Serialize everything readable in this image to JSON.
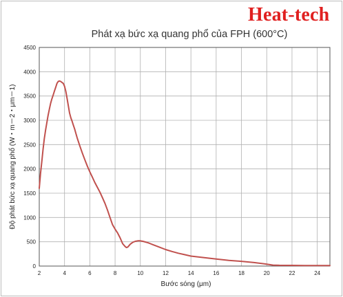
{
  "brand": {
    "logo_text": "Heat-tech",
    "color": "#e02020"
  },
  "chart_data": {
    "type": "line",
    "title": "Phát xạ bức xạ quang phổ của FPH (600°C)",
    "xlabel": "Bước sóng (μm)",
    "ylabel": "Độ phát bức xạ quang phổ (W・m－2・μm－1)",
    "xlim": [
      2,
      25
    ],
    "ylim": [
      0,
      4500
    ],
    "xticks": [
      "2",
      "4",
      "6",
      "8",
      "10",
      "12",
      "14",
      "16",
      "18",
      "20",
      "22",
      "24"
    ],
    "xtick_values": [
      2,
      4,
      6,
      8,
      10,
      12,
      14,
      16,
      18,
      20,
      22,
      24
    ],
    "yticks": [
      "0",
      "500",
      "1000",
      "1500",
      "2000",
      "2500",
      "3000",
      "3500",
      "4000",
      "4500"
    ],
    "ytick_values": [
      0,
      500,
      1000,
      1500,
      2000,
      2500,
      3000,
      3500,
      4000,
      4500
    ],
    "grid": true,
    "line_color": "#c0504d",
    "series": [
      {
        "x": [
          2.0,
          2.1,
          2.2,
          2.3,
          2.4,
          2.5,
          2.6,
          2.7,
          2.8,
          2.9,
          3.0,
          3.1,
          3.2,
          3.3,
          3.4,
          3.5,
          3.6,
          3.7,
          3.8,
          3.9,
          4.0,
          4.1,
          4.2,
          4.3,
          4.4,
          4.5,
          4.6,
          4.7,
          4.8,
          4.9,
          5.0,
          5.2,
          5.4,
          5.6,
          5.8,
          6.0,
          6.2,
          6.4,
          6.6,
          6.8,
          7.0,
          7.2,
          7.4,
          7.6,
          7.8,
          8.0,
          8.2,
          8.4,
          8.6,
          8.8,
          8.9,
          9.0,
          9.1,
          9.2,
          9.4,
          9.6,
          9.8,
          10.0,
          10.2,
          10.4,
          10.6,
          10.8,
          11.0,
          11.5,
          12.0,
          12.5,
          13.0,
          13.5,
          14.0,
          15.0,
          16.0,
          17.0,
          18.0,
          19.0,
          20.0,
          20.5,
          21.0,
          22.0,
          23.0,
          24.0,
          25.0
        ],
        "y": [
          1600,
          1900,
          2150,
          2400,
          2620,
          2800,
          2950,
          3100,
          3230,
          3350,
          3440,
          3520,
          3600,
          3680,
          3760,
          3800,
          3810,
          3800,
          3780,
          3760,
          3700,
          3600,
          3450,
          3300,
          3150,
          3050,
          2980,
          2900,
          2820,
          2730,
          2640,
          2480,
          2330,
          2190,
          2060,
          1940,
          1830,
          1720,
          1620,
          1520,
          1410,
          1290,
          1150,
          1000,
          850,
          760,
          680,
          580,
          460,
          400,
          380,
          390,
          420,
          450,
          490,
          510,
          520,
          520,
          510,
          495,
          480,
          460,
          440,
          390,
          340,
          300,
          265,
          235,
          205,
          175,
          145,
          118,
          98,
          72,
          40,
          20,
          16,
          14,
          12,
          11,
          10
        ]
      }
    ]
  }
}
